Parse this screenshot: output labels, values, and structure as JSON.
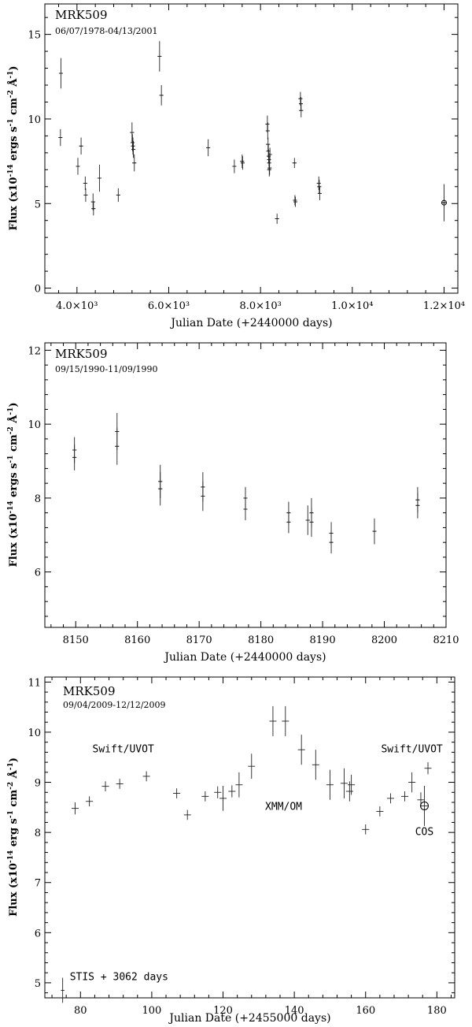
{
  "chart_data": [
    {
      "type": "scatter",
      "title": "MRK509",
      "subtitle": "06/07/1978-04/13/2001",
      "xlabel": "Julian Date (+2440000 days)",
      "ylabel": "Flux (x10-14 ergs s-1 cm-2 Å-1)",
      "xlim": [
        3300,
        12300
      ],
      "ylim": [
        -0.3,
        16.8
      ],
      "xticks": [
        4000,
        6000,
        8000,
        10000,
        12000
      ],
      "xtick_labels": [
        "4.0×10³",
        "6.0×10³",
        "8.0×10³",
        "1.0×10⁴",
        "1.2×10⁴"
      ],
      "yticks": [
        0,
        5,
        10,
        15
      ],
      "ytick_labels": [
        "0",
        "5",
        "10",
        "15"
      ],
      "series": [
        {
          "marker": "plus-errorbar",
          "points": [
            {
              "x": 3650,
              "y": 12.7,
              "err": 0.9
            },
            {
              "x": 3640,
              "y": 8.9,
              "err": 0.5
            },
            {
              "x": 4020,
              "y": 7.2,
              "err": 0.5
            },
            {
              "x": 4090,
              "y": 8.4,
              "err": 0.5
            },
            {
              "x": 4180,
              "y": 6.2,
              "err": 0.4
            },
            {
              "x": 4190,
              "y": 5.5,
              "err": 0.4
            },
            {
              "x": 4350,
              "y": 5.1,
              "err": 0.5
            },
            {
              "x": 4360,
              "y": 4.7,
              "err": 0.4
            },
            {
              "x": 4490,
              "y": 6.5,
              "err": 0.8
            },
            {
              "x": 4900,
              "y": 5.5,
              "err": 0.4
            },
            {
              "x": 5200,
              "y": 9.2,
              "err": 0.6
            },
            {
              "x": 5210,
              "y": 8.6,
              "err": 0.5
            },
            {
              "x": 5220,
              "y": 8.4,
              "err": 0.5
            },
            {
              "x": 5230,
              "y": 8.2,
              "err": 0.5
            },
            {
              "x": 5250,
              "y": 7.4,
              "err": 0.5
            },
            {
              "x": 5800,
              "y": 13.7,
              "err": 0.9
            },
            {
              "x": 5840,
              "y": 11.4,
              "err": 0.6
            },
            {
              "x": 6860,
              "y": 8.3,
              "err": 0.5
            },
            {
              "x": 7430,
              "y": 7.2,
              "err": 0.4
            },
            {
              "x": 7600,
              "y": 7.5,
              "err": 0.4
            },
            {
              "x": 7610,
              "y": 7.4,
              "err": 0.4
            },
            {
              "x": 8150,
              "y": 9.7,
              "err": 0.5
            },
            {
              "x": 8157,
              "y": 9.3,
              "err": 0.5
            },
            {
              "x": 8164,
              "y": 8.5,
              "err": 0.4
            },
            {
              "x": 8171,
              "y": 8.1,
              "err": 0.4
            },
            {
              "x": 8177,
              "y": 7.8,
              "err": 0.4
            },
            {
              "x": 8184,
              "y": 7.6,
              "err": 0.4
            },
            {
              "x": 8188,
              "y": 7.4,
              "err": 0.4
            },
            {
              "x": 8191,
              "y": 7.0,
              "err": 0.4
            },
            {
              "x": 8198,
              "y": 7.1,
              "err": 0.4
            },
            {
              "x": 8205,
              "y": 7.9,
              "err": 0.4
            },
            {
              "x": 8360,
              "y": 4.1,
              "err": 0.3
            },
            {
              "x": 8740,
              "y": 7.4,
              "err": 0.3
            },
            {
              "x": 8750,
              "y": 5.2,
              "err": 0.3
            },
            {
              "x": 8760,
              "y": 5.1,
              "err": 0.3
            },
            {
              "x": 8870,
              "y": 11.2,
              "err": 0.4
            },
            {
              "x": 8880,
              "y": 10.9,
              "err": 0.4
            },
            {
              "x": 8885,
              "y": 10.5,
              "err": 0.4
            },
            {
              "x": 9270,
              "y": 6.2,
              "err": 0.4
            },
            {
              "x": 9280,
              "y": 6.0,
              "err": 0.4
            },
            {
              "x": 9290,
              "y": 5.6,
              "err": 0.4
            }
          ]
        },
        {
          "marker": "circle-errorbar",
          "points": [
            {
              "x": 12000,
              "y": 5.05,
              "err": 1.1
            }
          ]
        }
      ]
    },
    {
      "type": "scatter",
      "title": "MRK509",
      "subtitle": "09/15/1990-11/09/1990",
      "xlabel": "Julian Date (+2440000 days)",
      "ylabel": "Flux (x10-14 ergs s-1 cm-2 Å-1)",
      "xlim": [
        8145,
        8210
      ],
      "ylim": [
        4.5,
        12.2
      ],
      "xticks": [
        8150,
        8160,
        8170,
        8180,
        8190,
        8200,
        8210
      ],
      "xtick_labels": [
        "8150",
        "8160",
        "8170",
        "8180",
        "8190",
        "8200",
        "8210"
      ],
      "yticks": [
        6,
        8,
        10,
        12
      ],
      "ytick_labels": [
        "6",
        "8",
        "10",
        "12"
      ],
      "series": [
        {
          "marker": "plus-errorbar",
          "points": [
            {
              "x": 8149.8,
              "y": 9.3,
              "err": 0.35
            },
            {
              "x": 8149.8,
              "y": 9.1,
              "err": 0.35
            },
            {
              "x": 8156.7,
              "y": 9.8,
              "err": 0.5
            },
            {
              "x": 8156.7,
              "y": 9.4,
              "err": 0.5
            },
            {
              "x": 8163.7,
              "y": 8.45,
              "err": 0.45
            },
            {
              "x": 8163.7,
              "y": 8.25,
              "err": 0.45
            },
            {
              "x": 8170.6,
              "y": 8.3,
              "err": 0.4
            },
            {
              "x": 8170.6,
              "y": 8.05,
              "err": 0.4
            },
            {
              "x": 8177.5,
              "y": 8.0,
              "err": 0.3
            },
            {
              "x": 8177.5,
              "y": 7.7,
              "err": 0.3
            },
            {
              "x": 8184.5,
              "y": 7.6,
              "err": 0.3
            },
            {
              "x": 8184.5,
              "y": 7.35,
              "err": 0.3
            },
            {
              "x": 8187.6,
              "y": 7.4,
              "err": 0.4
            },
            {
              "x": 8188.2,
              "y": 7.6,
              "err": 0.4
            },
            {
              "x": 8188.2,
              "y": 7.35,
              "err": 0.4
            },
            {
              "x": 8191.4,
              "y": 7.05,
              "err": 0.3
            },
            {
              "x": 8191.4,
              "y": 6.8,
              "err": 0.3
            },
            {
              "x": 8198.4,
              "y": 7.1,
              "err": 0.35
            },
            {
              "x": 8205.4,
              "y": 7.95,
              "err": 0.35
            },
            {
              "x": 8205.4,
              "y": 7.8,
              "err": 0.35
            }
          ]
        }
      ]
    },
    {
      "type": "scatter",
      "title": "MRK509",
      "subtitle": "09/04/2009-12/12/2009",
      "xlabel": "Julian Date (+2455000 days)",
      "ylabel": "Flux (x10-14 erg s-1 cm-2 Å-1)",
      "xlim": [
        70,
        185
      ],
      "ylim": [
        4.7,
        11.1
      ],
      "xticks": [
        80,
        100,
        120,
        140,
        160,
        180
      ],
      "xtick_labels": [
        "80",
        "100",
        "120",
        "140",
        "160",
        "180"
      ],
      "yticks": [
        5,
        6,
        7,
        8,
        9,
        10,
        11
      ],
      "ytick_labels": [
        "5",
        "6",
        "7",
        "8",
        "9",
        "10",
        "11"
      ],
      "annotations": [
        {
          "text": "Swift/UVOT",
          "x": 92,
          "y": 9.6
        },
        {
          "text": "XMM/OM",
          "x": 137,
          "y": 8.45
        },
        {
          "text": "Swift/UVOT",
          "x": 173,
          "y": 9.6
        },
        {
          "text": "COS",
          "x": 176.5,
          "y": 7.95
        },
        {
          "text": "STIS + 3062 days",
          "x": 77,
          "y": 5.05
        }
      ],
      "series": [
        {
          "name": "Swift/UVOT",
          "marker": "cross-errorbar",
          "points": [
            {
              "x": 78.5,
              "y": 8.48,
              "ex": 1.0,
              "err": 0.12
            },
            {
              "x": 82.5,
              "y": 8.62,
              "ex": 1.0,
              "err": 0.1
            },
            {
              "x": 87.0,
              "y": 8.92,
              "ex": 1.0,
              "err": 0.1
            },
            {
              "x": 91.0,
              "y": 8.97,
              "ex": 1.0,
              "err": 0.1
            },
            {
              "x": 98.5,
              "y": 9.12,
              "ex": 1.0,
              "err": 0.1
            },
            {
              "x": 107.0,
              "y": 8.78,
              "ex": 1.0,
              "err": 0.1
            },
            {
              "x": 110.0,
              "y": 8.35,
              "ex": 1.0,
              "err": 0.1
            },
            {
              "x": 115.0,
              "y": 8.72,
              "ex": 1.0,
              "err": 0.1
            },
            {
              "x": 118.5,
              "y": 8.8,
              "ex": 1.0,
              "err": 0.12
            },
            {
              "x": 120.0,
              "y": 8.68,
              "ex": 1.0,
              "err": 0.25
            },
            {
              "x": 122.5,
              "y": 8.82,
              "ex": 1.0,
              "err": 0.12
            },
            {
              "x": 160.0,
              "y": 8.06,
              "ex": 1.0,
              "err": 0.1
            },
            {
              "x": 164.0,
              "y": 8.42,
              "ex": 1.0,
              "err": 0.1
            },
            {
              "x": 167.0,
              "y": 8.68,
              "ex": 1.0,
              "err": 0.1
            },
            {
              "x": 171.0,
              "y": 8.72,
              "ex": 1.0,
              "err": 0.1
            },
            {
              "x": 173.0,
              "y": 9.0,
              "ex": 1.0,
              "err": 0.2
            },
            {
              "x": 175.5,
              "y": 8.65,
              "ex": 1.0,
              "err": 0.15
            },
            {
              "x": 177.5,
              "y": 9.28,
              "ex": 1.0,
              "err": 0.12
            }
          ]
        },
        {
          "name": "XMM/OM",
          "marker": "cross-errorbar",
          "points": [
            {
              "x": 124.5,
              "y": 8.95,
              "ex": 1.0,
              "err": 0.25
            },
            {
              "x": 128.0,
              "y": 9.32,
              "ex": 1.0,
              "err": 0.25
            },
            {
              "x": 134.0,
              "y": 10.22,
              "ex": 1.0,
              "err": 0.3
            },
            {
              "x": 137.5,
              "y": 10.22,
              "ex": 1.0,
              "err": 0.3
            },
            {
              "x": 142.0,
              "y": 9.65,
              "ex": 1.0,
              "err": 0.3
            },
            {
              "x": 146.0,
              "y": 9.35,
              "ex": 1.0,
              "err": 0.3
            },
            {
              "x": 150.0,
              "y": 8.95,
              "ex": 1.0,
              "err": 0.3
            },
            {
              "x": 154.0,
              "y": 8.98,
              "ex": 1.0,
              "err": 0.3
            },
            {
              "x": 155.5,
              "y": 8.82,
              "ex": 1.0,
              "err": 0.2
            },
            {
              "x": 156.0,
              "y": 8.95,
              "ex": 1.0,
              "err": 0.2
            }
          ]
        },
        {
          "name": "COS",
          "marker": "circle-errorbar",
          "points": [
            {
              "x": 176.5,
              "y": 8.53,
              "ex": 0.0,
              "err": 0.4
            }
          ]
        },
        {
          "name": "STIS + 3062 days",
          "marker": "cross-errorbar",
          "points": [
            {
              "x": 75.0,
              "y": 4.85,
              "ex": 0.5,
              "err": 0.25
            }
          ]
        }
      ]
    }
  ]
}
